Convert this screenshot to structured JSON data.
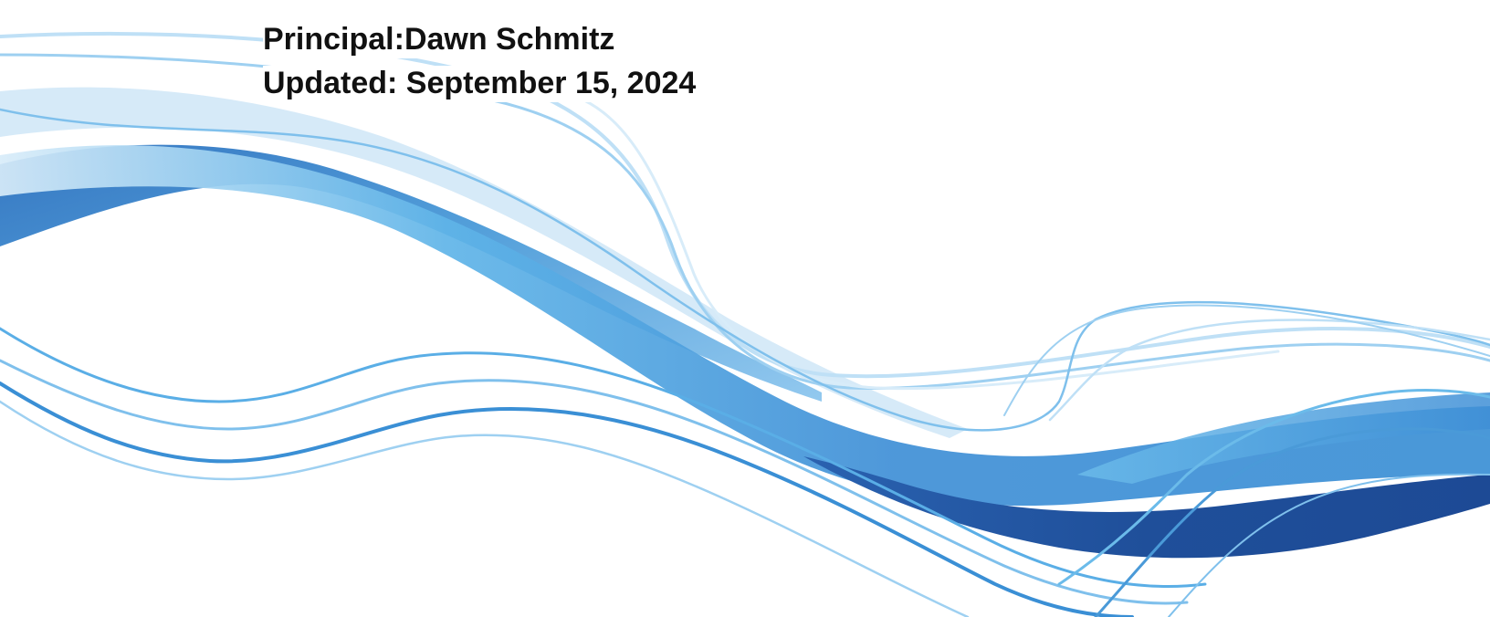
{
  "document": {
    "principal_label": "Principal:",
    "principal_name": "Dawn Schmitz",
    "updated_label": "Updated:",
    "updated_date": "September 15, 2024"
  },
  "colors": {
    "wave_dark": "#1f4f9a",
    "wave_mid": "#3a84cf",
    "wave_light": "#69b9ea",
    "wave_pale": "#d6ebf8",
    "text": "#111111",
    "background": "#ffffff"
  }
}
